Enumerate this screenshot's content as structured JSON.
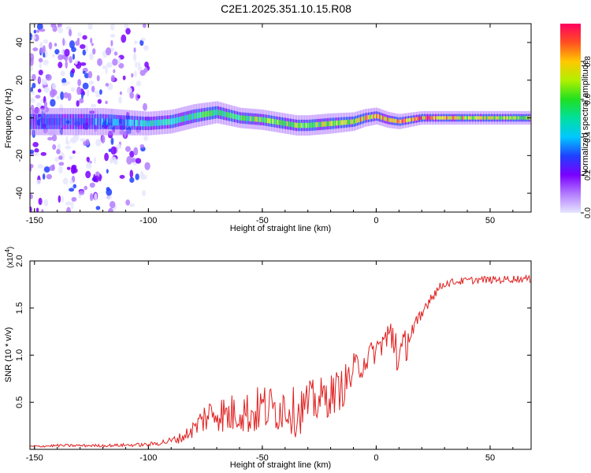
{
  "figure_title": "C2E1.2025.351.10.15.R08",
  "colorbar": {
    "label": "Normalized spectral amplitude",
    "ticks": [
      "0.0",
      "0.2",
      "0.4",
      "0.6",
      "0.8"
    ],
    "tick_values": [
      0.0,
      0.2,
      0.4,
      0.6,
      0.8
    ],
    "range": [
      0,
      1
    ],
    "colors": [
      "#e6e6ff",
      "#b37cff",
      "#7a00ff",
      "#2040ff",
      "#00c8ff",
      "#00e0a0",
      "#20e020",
      "#b0f000",
      "#ffc800",
      "#ff5020",
      "#ff0060"
    ]
  },
  "chart_data": [
    {
      "type": "heatmap",
      "title": "C2E1.2025.351.10.15.R08",
      "xlabel": "Height of straight line (km)",
      "ylabel": "Frequency (Hz)",
      "xlim": [
        -152,
        68
      ],
      "ylim": [
        -50,
        50
      ],
      "xticks": [
        -150,
        -100,
        -50,
        0,
        50
      ],
      "xtick_labels": [
        "-150",
        "-100",
        "-50",
        "0",
        "50"
      ],
      "yticks": [
        -40,
        -20,
        0,
        20,
        40
      ],
      "ytick_labels": [
        "-40",
        "-20",
        "0",
        "20",
        "40"
      ],
      "ridge_center_hz": {
        "x": [
          -152,
          -140,
          -120,
          -100,
          -90,
          -80,
          -70,
          -60,
          -50,
          -40,
          -35,
          -30,
          -20,
          -10,
          -5,
          0,
          5,
          10,
          15,
          20,
          30,
          40,
          50,
          68
        ],
        "y": [
          -2,
          -2,
          -2,
          -3,
          -2,
          1,
          3,
          0,
          -1,
          -3,
          -4,
          -4,
          -3,
          -2,
          0,
          1,
          -1,
          -2,
          -1,
          0,
          0,
          0,
          0,
          0
        ]
      },
      "ridge_halfwidth_hz": {
        "x": [
          -152,
          -120,
          -100,
          -80,
          -60,
          -40,
          -20,
          0,
          20,
          40,
          68
        ],
        "y": [
          4,
          4,
          3.5,
          3.5,
          3,
          3,
          3,
          2.5,
          2,
          2,
          2
        ]
      },
      "ridge_peak_amplitude": {
        "x": [
          -152,
          -130,
          -100,
          -80,
          -60,
          -40,
          -20,
          -10,
          0,
          10,
          20,
          30,
          50,
          68
        ],
        "y": [
          0.3,
          0.3,
          0.45,
          0.55,
          0.6,
          0.65,
          0.7,
          0.8,
          0.85,
          0.9,
          0.9,
          0.85,
          0.75,
          0.7
        ]
      },
      "noise_region_km": [
        -152,
        -100
      ],
      "noise_band_hz": [
        -50,
        50
      ]
    },
    {
      "type": "line",
      "title": "",
      "xlabel": "Height of straight line (km)",
      "ylabel": "SNR (10 * v/v)",
      "scale_label": "(x10",
      "scale_exponent": "4",
      "xlim": [
        -152,
        68
      ],
      "ylim": [
        0,
        20000
      ],
      "xticks": [
        -150,
        -100,
        -50,
        0,
        50
      ],
      "xtick_labels": [
        "-150",
        "-100",
        "-50",
        "0",
        "50"
      ],
      "yticks": [
        5000,
        10000,
        15000,
        20000
      ],
      "ytick_labels": [
        "0.5",
        "1.0",
        "1.5",
        "2.0"
      ],
      "series": [
        {
          "name": "SNR",
          "color": "#e02020",
          "x": [
            -152,
            -140,
            -120,
            -100,
            -95,
            -90,
            -85,
            -80,
            -75,
            -70,
            -65,
            -60,
            -55,
            -50,
            -45,
            -40,
            -35,
            -30,
            -25,
            -20,
            -15,
            -10,
            -5,
            0,
            3,
            6,
            8,
            10,
            13,
            15,
            18,
            20,
            22,
            25,
            28,
            30,
            35,
            40,
            45,
            50,
            55,
            60,
            65,
            68
          ],
          "y": [
            300,
            400,
            400,
            500,
            700,
            900,
            1300,
            2200,
            3500,
            4000,
            3500,
            4200,
            3700,
            4500,
            4200,
            4700,
            3800,
            4800,
            5200,
            5800,
            6500,
            8200,
            9500,
            10500,
            11500,
            11800,
            12200,
            9500,
            11000,
            12500,
            13000,
            14000,
            15500,
            16500,
            17200,
            17600,
            17800,
            17900,
            18000,
            18000,
            18000,
            18100,
            18100,
            18000
          ],
          "noise_amplitude": [
            100,
            150,
            150,
            200,
            300,
            400,
            600,
            1000,
            1800,
            2000,
            2200,
            2300,
            2500,
            2600,
            2600,
            2600,
            2600,
            2500,
            2400,
            2300,
            2200,
            2000,
            1600,
            1300,
            1600,
            2500,
            3500,
            2500,
            2000,
            1500,
            1300,
            1000,
            800,
            700,
            500,
            400,
            400,
            400,
            400,
            400,
            400,
            400,
            400,
            400
          ]
        }
      ]
    }
  ]
}
